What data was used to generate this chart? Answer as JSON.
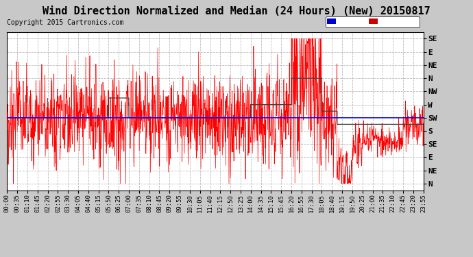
{
  "title": "Wind Direction Normalized and Median (24 Hours) (New) 20150817",
  "copyright": "Copyright 2015 Cartronics.com",
  "background_color": "#c8c8c8",
  "plot_bg_color": "#ffffff",
  "grid_color": "#aaaaaa",
  "ytick_labels": [
    "SE",
    "E",
    "NE",
    "N",
    "NW",
    "W",
    "SW",
    "S",
    "SE",
    "E",
    "NE",
    "N"
  ],
  "ytick_values": [
    0,
    1,
    2,
    3,
    4,
    5,
    6,
    7,
    8,
    9,
    10,
    11
  ],
  "ylim": [
    -0.5,
    11.5
  ],
  "legend_avg_color": "#0000cc",
  "legend_dir_color": "#cc0000",
  "red_line_color": "#ff0000",
  "blue_line_color": "#0000ff",
  "gray_line_color": "#404040",
  "xtick_labels": [
    "00:00",
    "00:35",
    "01:10",
    "01:45",
    "02:20",
    "02:55",
    "03:30",
    "04:05",
    "04:40",
    "05:15",
    "05:50",
    "06:25",
    "07:00",
    "07:35",
    "08:10",
    "08:45",
    "09:20",
    "09:55",
    "10:30",
    "11:05",
    "11:40",
    "12:15",
    "12:50",
    "13:25",
    "14:00",
    "14:35",
    "15:10",
    "15:45",
    "16:20",
    "16:55",
    "17:30",
    "18:05",
    "18:40",
    "19:15",
    "19:50",
    "20:25",
    "21:00",
    "21:35",
    "22:10",
    "22:45",
    "23:20",
    "23:55"
  ],
  "title_fontsize": 11,
  "copyright_fontsize": 7,
  "ytick_fontsize": 8,
  "xtick_fontsize": 6.5
}
